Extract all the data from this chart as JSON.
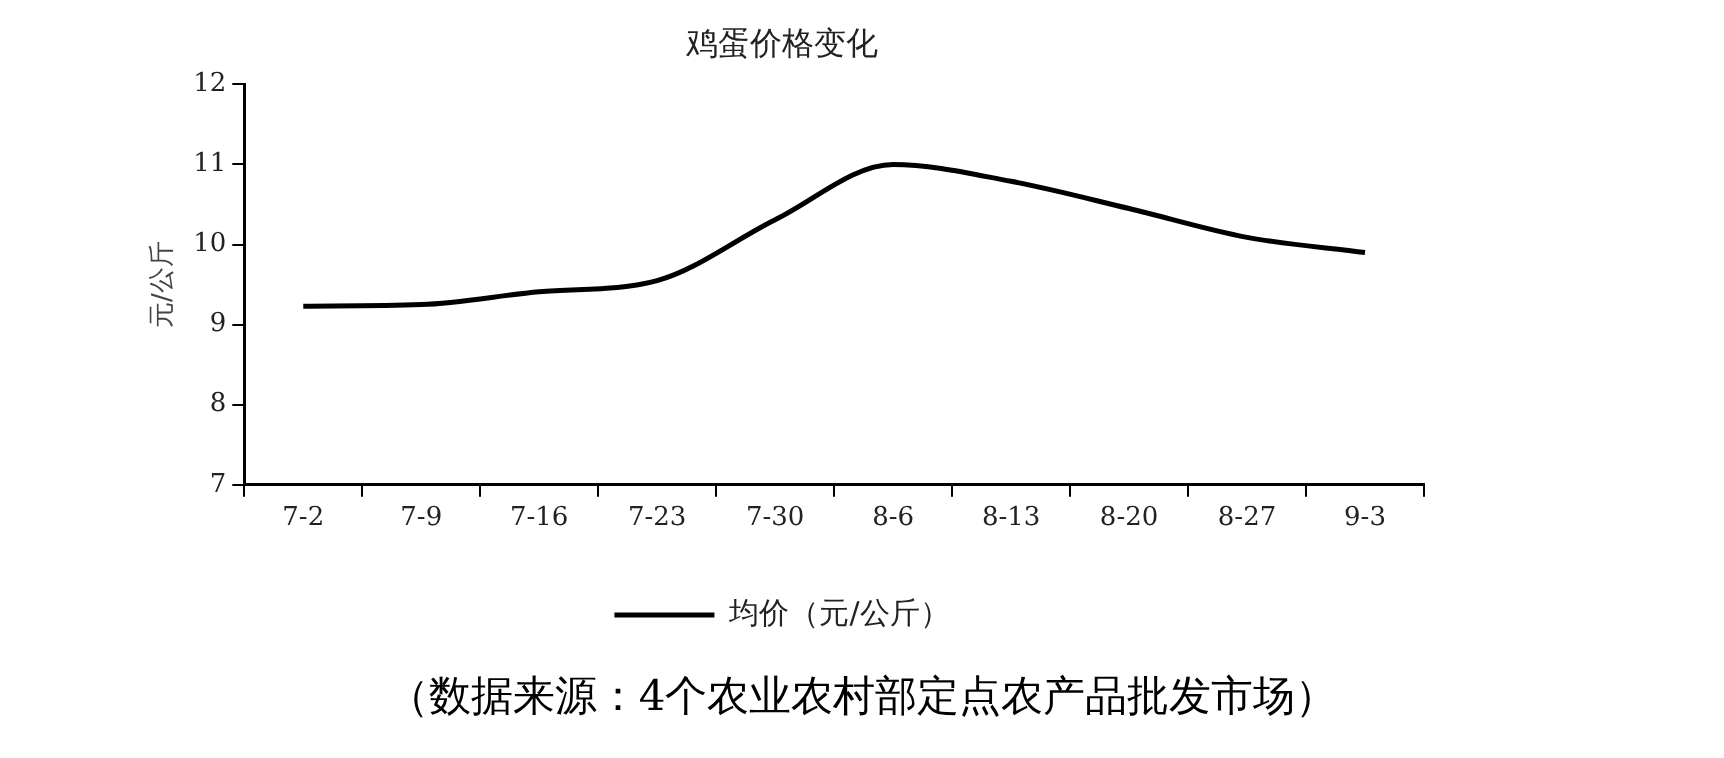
{
  "chart_data": {
    "type": "line",
    "title": "鸡蛋价格变化",
    "ylabel": "元/公斤",
    "categories": [
      "7-2",
      "7-9",
      "7-16",
      "7-23",
      "7-30",
      "8-6",
      "8-13",
      "8-20",
      "8-27",
      "9-3"
    ],
    "series": [
      {
        "name": "均价（元/公斤）",
        "color": "#000000",
        "values": [
          9.23,
          9.25,
          9.41,
          9.55,
          10.31,
          11.0,
          10.79,
          10.45,
          10.09,
          9.9
        ]
      }
    ],
    "ylim": [
      7,
      12
    ],
    "yticks": [
      7,
      8,
      9,
      10,
      11,
      12
    ],
    "grid": false,
    "legend": "bottom",
    "marker": "none",
    "line_style": "solid",
    "annotations": [
      "（数据来源：4个农业农村部定点农产品批发市场）"
    ]
  }
}
